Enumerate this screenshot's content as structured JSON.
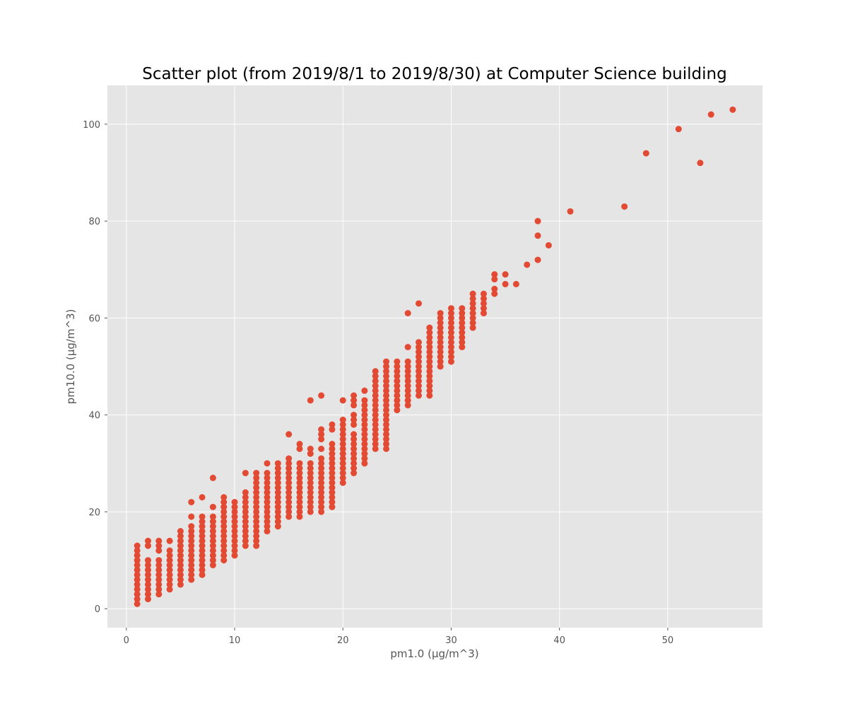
{
  "chart_data": {
    "type": "scatter",
    "title": "Scatter plot (from 2019/8/1 to 2019/8/30) at Computer Science building",
    "xlabel": "pm1.0 (μg/m^3)",
    "ylabel": "pm10.0 (μg/m^3)",
    "xlim": [
      -1.75,
      58.75
    ],
    "ylim": [
      -3.9,
      108.0
    ],
    "xticks": [
      0,
      10,
      20,
      30,
      40,
      50
    ],
    "yticks": [
      0,
      20,
      40,
      60,
      80,
      100
    ],
    "grid": true,
    "legend": "none",
    "colors": {
      "background": "#e5e5e5",
      "grid": "#ffffff",
      "marker": "#e24a33",
      "text": "#555555"
    },
    "columns": [
      {
        "x": 1,
        "y_min": 1,
        "y_max": 13
      },
      {
        "x": 2,
        "y_min": 2,
        "y_max": 10,
        "extra": [
          13,
          14
        ]
      },
      {
        "x": 3,
        "y_min": 3,
        "y_max": 10,
        "extra": [
          12,
          13,
          14
        ]
      },
      {
        "x": 4,
        "y_min": 4,
        "y_max": 12,
        "extra": [
          14
        ]
      },
      {
        "x": 5,
        "y_min": 5,
        "y_max": 16
      },
      {
        "x": 6,
        "y_min": 6,
        "y_max": 17,
        "extra": [
          19,
          22
        ]
      },
      {
        "x": 7,
        "y_min": 7,
        "y_max": 19,
        "extra": [
          23
        ]
      },
      {
        "x": 8,
        "y_min": 9,
        "y_max": 19,
        "extra": [
          21,
          27
        ]
      },
      {
        "x": 9,
        "y_min": 10,
        "y_max": 23
      },
      {
        "x": 10,
        "y_min": 11,
        "y_max": 22
      },
      {
        "x": 11,
        "y_min": 13,
        "y_max": 24,
        "extra": [
          28
        ]
      },
      {
        "x": 12,
        "y_min": 13,
        "y_max": 28
      },
      {
        "x": 13,
        "y_min": 16,
        "y_max": 28,
        "extra": [
          30
        ]
      },
      {
        "x": 14,
        "y_min": 17,
        "y_max": 30
      },
      {
        "x": 15,
        "y_min": 19,
        "y_max": 31,
        "extra": [
          36
        ]
      },
      {
        "x": 16,
        "y_min": 19,
        "y_max": 30,
        "extra": [
          33,
          34
        ]
      },
      {
        "x": 17,
        "y_min": 20,
        "y_max": 30,
        "extra": [
          32,
          33,
          43
        ]
      },
      {
        "x": 18,
        "y_min": 20,
        "y_max": 31,
        "extra": [
          33,
          35,
          36,
          37,
          44
        ]
      },
      {
        "x": 19,
        "y_min": 21,
        "y_max": 34,
        "extra": [
          37,
          38
        ]
      },
      {
        "x": 20,
        "y_min": 26,
        "y_max": 39,
        "extra": [
          43
        ]
      },
      {
        "x": 21,
        "y_min": 28,
        "y_max": 36,
        "extra": [
          38,
          39,
          40,
          42,
          43,
          44
        ]
      },
      {
        "x": 22,
        "y_min": 30,
        "y_max": 43,
        "extra": [
          45
        ]
      },
      {
        "x": 23,
        "y_min": 33,
        "y_max": 49
      },
      {
        "x": 24,
        "y_min": 33,
        "y_max": 51
      },
      {
        "x": 25,
        "y_min": 41,
        "y_max": 51
      },
      {
        "x": 26,
        "y_min": 42,
        "y_max": 51,
        "extra": [
          54,
          61
        ]
      },
      {
        "x": 27,
        "y_min": 44,
        "y_max": 55,
        "extra": [
          63
        ]
      },
      {
        "x": 28,
        "y_min": 44,
        "y_max": 58
      },
      {
        "x": 29,
        "y_min": 50,
        "y_max": 61
      },
      {
        "x": 30,
        "y_min": 51,
        "y_max": 62
      },
      {
        "x": 31,
        "y_min": 54,
        "y_max": 62
      },
      {
        "x": 32,
        "y_min": 58,
        "y_max": 65
      },
      {
        "x": 33,
        "y_min": 61,
        "y_max": 65
      }
    ],
    "points": [
      [
        34,
        65
      ],
      [
        34,
        66
      ],
      [
        34,
        68
      ],
      [
        34,
        69
      ],
      [
        35,
        67
      ],
      [
        35,
        69
      ],
      [
        36,
        67
      ],
      [
        37,
        71
      ],
      [
        38,
        72
      ],
      [
        38,
        77
      ],
      [
        38,
        80
      ],
      [
        39,
        75
      ],
      [
        41,
        82
      ],
      [
        46,
        83
      ],
      [
        48,
        94
      ],
      [
        51,
        99
      ],
      [
        53,
        92
      ],
      [
        54,
        102
      ],
      [
        56,
        103
      ]
    ]
  }
}
